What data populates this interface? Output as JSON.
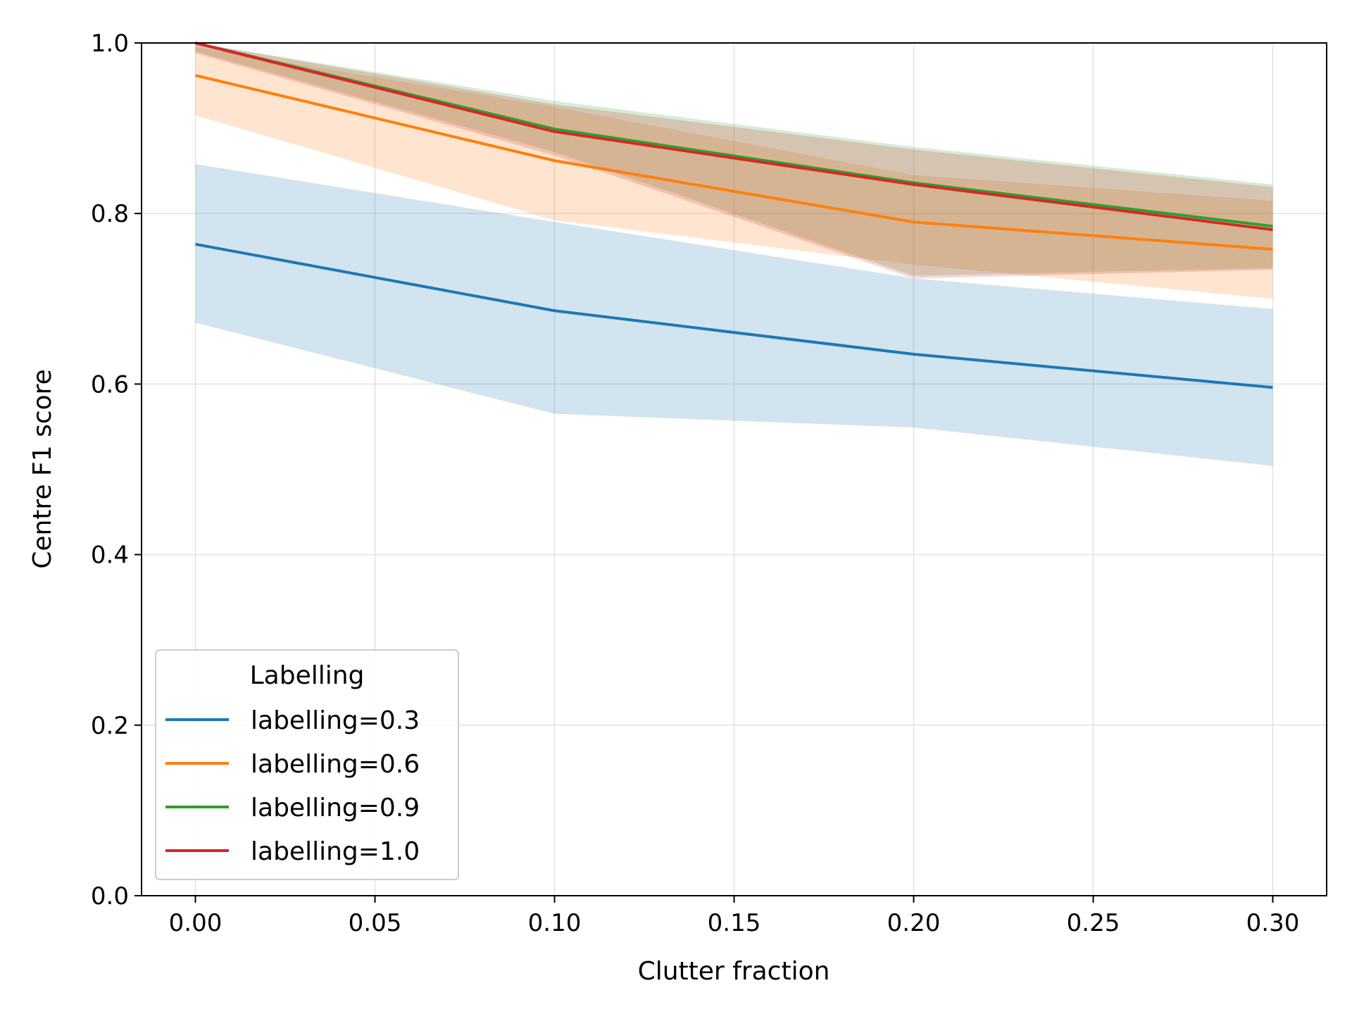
{
  "chart_data": {
    "type": "line",
    "title": "",
    "xlabel": "Clutter fraction",
    "ylabel": "Centre F1 score",
    "xlim": [
      -0.015,
      0.315
    ],
    "ylim": [
      0.0,
      1.0
    ],
    "xticks": [
      0.0,
      0.05,
      0.1,
      0.15,
      0.2,
      0.25,
      0.3
    ],
    "xtick_labels": [
      "0.00",
      "0.05",
      "0.10",
      "0.15",
      "0.20",
      "0.25",
      "0.30"
    ],
    "yticks": [
      0.0,
      0.2,
      0.4,
      0.6,
      0.8,
      1.0
    ],
    "ytick_labels": [
      "0.0",
      "0.2",
      "0.4",
      "0.6",
      "0.8",
      "1.0"
    ],
    "grid": true,
    "legend": {
      "title": "Labelling",
      "position": "lower-left"
    },
    "x": [
      0.0,
      0.1,
      0.2,
      0.3
    ],
    "series": [
      {
        "name": "labelling=0.3",
        "color": "#1f77b4",
        "values": [
          0.764,
          0.686,
          0.635,
          0.596
        ],
        "lower": [
          0.672,
          0.565,
          0.549,
          0.504
        ],
        "upper": [
          0.858,
          0.79,
          0.724,
          0.688
        ]
      },
      {
        "name": "labelling=0.6",
        "color": "#ff7f0e",
        "values": [
          0.962,
          0.862,
          0.79,
          0.758
        ],
        "lower": [
          0.915,
          0.792,
          0.74,
          0.7
        ],
        "upper": [
          0.995,
          0.925,
          0.845,
          0.815
        ]
      },
      {
        "name": "labelling=0.9",
        "color": "#2ca02c",
        "values": [
          1.0,
          0.899,
          0.836,
          0.785
        ],
        "lower": [
          0.99,
          0.872,
          0.727,
          0.736
        ],
        "upper": [
          1.0,
          0.932,
          0.878,
          0.834
        ]
      },
      {
        "name": "labelling=1.0",
        "color": "#d62728",
        "values": [
          1.0,
          0.896,
          0.834,
          0.781
        ],
        "lower": [
          0.988,
          0.868,
          0.724,
          0.734
        ],
        "upper": [
          1.0,
          0.928,
          0.875,
          0.831
        ]
      }
    ]
  }
}
